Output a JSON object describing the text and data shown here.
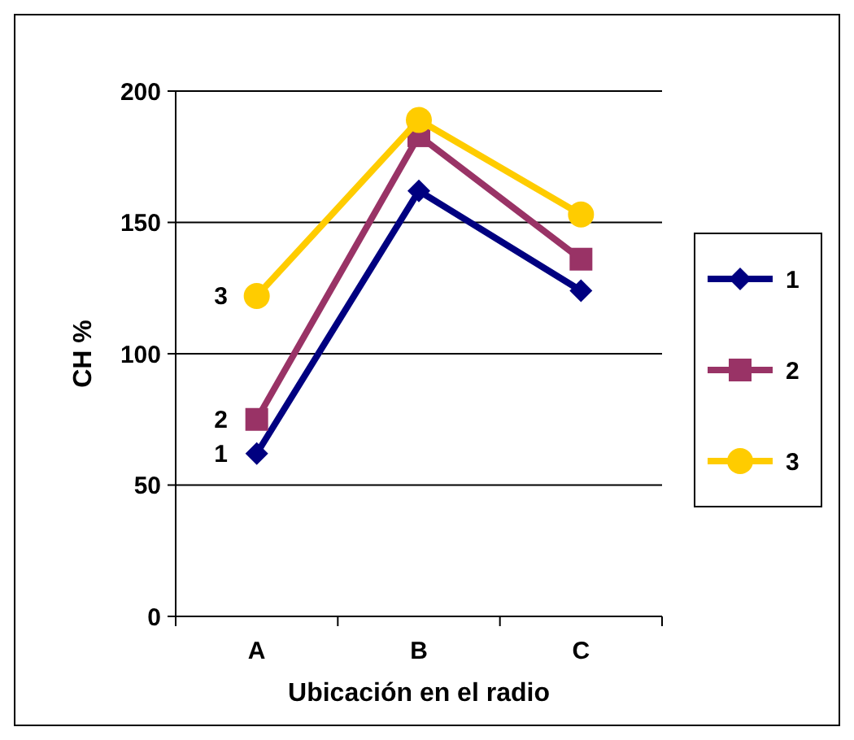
{
  "chart_data": {
    "type": "line",
    "xlabel": "Ubicación en el radio",
    "ylabel": "CH %",
    "categories": [
      "A",
      "B",
      "C"
    ],
    "series": [
      {
        "name": "1",
        "color": "#000080",
        "marker": "diamond",
        "values": [
          62,
          162,
          124
        ]
      },
      {
        "name": "2",
        "color": "#993366",
        "marker": "square",
        "values": [
          75,
          183,
          136
        ]
      },
      {
        "name": "3",
        "color": "#ffcc00",
        "marker": "circle",
        "values": [
          122,
          189,
          153
        ]
      }
    ],
    "ylim": [
      0,
      200
    ],
    "yticks": [
      0,
      50,
      100,
      150,
      200
    ],
    "grid": "y",
    "legend": "right",
    "line_style": "solid",
    "annotations": [
      {
        "text": "3",
        "x": "A",
        "y": 122
      },
      {
        "text": "2",
        "x": "A",
        "y": 75
      },
      {
        "text": "1",
        "x": "A",
        "y": 62
      }
    ]
  }
}
